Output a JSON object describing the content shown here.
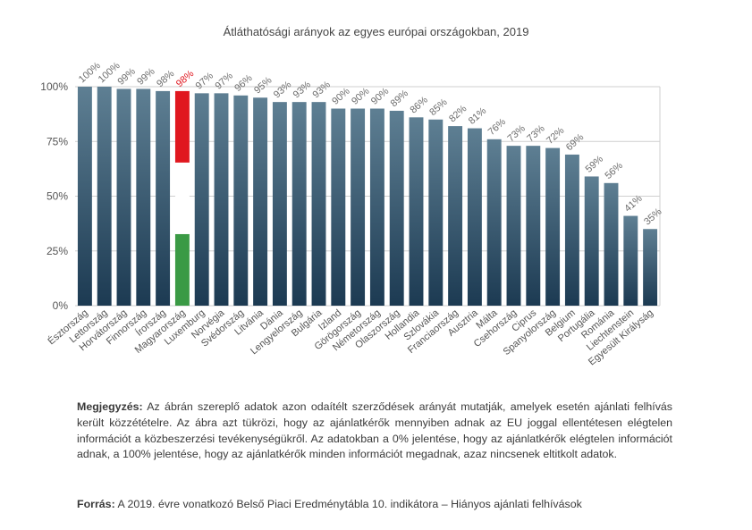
{
  "chart_data": {
    "type": "bar",
    "title": "Átláthatósági arányok az egyes európai országokban, 2019",
    "categories": [
      "Észtország",
      "Lettország",
      "Horvátország",
      "Finnország",
      "Írország",
      "Magyarország",
      "Luxemburg",
      "Norvégia",
      "Svédország",
      "Litvánia",
      "Dánia",
      "Lengyelország",
      "Bulgária",
      "Izland",
      "Görögország",
      "Németország",
      "Olaszország",
      "Hollandia",
      "Szlovákia",
      "Franciaország",
      "Ausztria",
      "Málta",
      "Csehország",
      "Ciprus",
      "Spanyolország",
      "Belgium",
      "Portugália",
      "Románia",
      "Liechtenstein",
      "Egyesült Királyság"
    ],
    "values": [
      100,
      100,
      99,
      99,
      98,
      98,
      97,
      97,
      96,
      95,
      93,
      93,
      93,
      90,
      90,
      90,
      89,
      86,
      85,
      82,
      81,
      76,
      73,
      73,
      72,
      69,
      59,
      56,
      41,
      35
    ],
    "value_labels": [
      "100%",
      "100%",
      "99%",
      "99%",
      "98%",
      "98%",
      "97%",
      "97%",
      "96%",
      "95%",
      "93%",
      "93%",
      "93%",
      "90%",
      "90%",
      "90%",
      "89%",
      "86%",
      "85%",
      "82%",
      "81%",
      "76%",
      "73%",
      "73%",
      "72%",
      "69%",
      "59%",
      "56%",
      "41%",
      "35%"
    ],
    "yticks": [
      "0%",
      "25%",
      "50%",
      "75%",
      "100%"
    ],
    "ytick_values": [
      0,
      25,
      50,
      75,
      100
    ],
    "ylim": [
      0,
      100
    ],
    "highlight_index": 5,
    "grid": "y",
    "colors": {
      "bar_top": "#5e7f93",
      "bar_bottom": "#1c3a52",
      "flag_red": "#e0171f",
      "flag_white": "#ffffff",
      "flag_green": "#3a9a45",
      "highlight_label": "#e0171f",
      "label": "#6d6d6d",
      "grid": "#cfcfcf"
    }
  },
  "note": {
    "label": "Megjegyzés:",
    "text": "Az ábrán szereplő adatok azon odaítélt szerződések arányát mutatják, amelyek esetén ajánlati felhívás került közzétételre. Az ábra azt tükrözi, hogy az ajánlatkérők mennyiben adnak az EU joggal ellentétesen elégtelen információt a közbeszerzési tevékenységükről. Az adatokban a 0% jelentése, hogy az ajánlatkérők elégtelen információt adnak, a 100% jelentése, hogy az ajánlatkérők minden információt megadnak, azaz nincsenek eltitkolt adatok."
  },
  "source": {
    "label": "Forrás:",
    "text": "A 2019. évre vonatkozó Belső Piaci Eredménytábla 10. indikátora – Hiányos ajánlati felhívások"
  }
}
